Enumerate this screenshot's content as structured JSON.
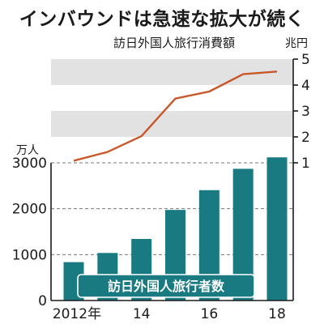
{
  "headline": "インバウンドは急速な拡大が続く",
  "chart_data": [
    {
      "type": "line",
      "title": "訪日外国人旅行消費額",
      "unit": "兆円",
      "x": [
        2012,
        2013,
        2014,
        2015,
        2016,
        2017,
        2018
      ],
      "values": [
        1.08,
        1.42,
        2.03,
        3.48,
        3.75,
        4.42,
        4.52
      ],
      "ylim": [
        1,
        5
      ],
      "yticks": [
        "1",
        "2",
        "3",
        "4",
        "5"
      ],
      "color": "#c8582a",
      "band_color": "#e2e2e2"
    },
    {
      "type": "bar",
      "series_label": "訪日外国人旅行者数",
      "unit": "万人",
      "x": [
        2012,
        2013,
        2014,
        2015,
        2016,
        2017,
        2018
      ],
      "values": [
        836,
        1036,
        1341,
        1974,
        2404,
        2869,
        3119
      ],
      "ylim": [
        0,
        3000
      ],
      "yticks": [
        "0",
        "1000",
        "2000",
        "3000"
      ],
      "xticks": [
        {
          "x": 2012,
          "label": "2012年"
        },
        {
          "x": 2014,
          "label": "14"
        },
        {
          "x": 2016,
          "label": "16"
        },
        {
          "x": 2018,
          "label": "18"
        }
      ],
      "color": "#1a7a82"
    }
  ]
}
